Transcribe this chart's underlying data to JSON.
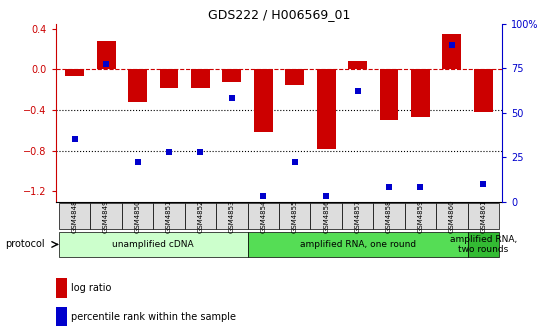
{
  "title": "GDS222 / H006569_01",
  "samples": [
    "GSM4848",
    "GSM4849",
    "GSM4850",
    "GSM4851",
    "GSM4852",
    "GSM4853",
    "GSM4854",
    "GSM4855",
    "GSM4856",
    "GSM4857",
    "GSM4858",
    "GSM4859",
    "GSM4860",
    "GSM4861"
  ],
  "log_ratio": [
    -0.07,
    0.28,
    -0.32,
    -0.18,
    -0.18,
    -0.12,
    -0.62,
    -0.15,
    -0.78,
    0.08,
    -0.5,
    -0.47,
    0.35,
    -0.42
  ],
  "percentile": [
    35,
    77,
    22,
    28,
    28,
    58,
    3,
    22,
    3,
    62,
    8,
    8,
    88,
    10
  ],
  "ylim_left": [
    -1.3,
    0.45
  ],
  "ylim_right": [
    0,
    100
  ],
  "yticks_left": [
    0.4,
    0.0,
    -0.4,
    -0.8,
    -1.2
  ],
  "yticks_right": [
    100,
    75,
    50,
    25,
    0
  ],
  "bar_color": "#cc0000",
  "dot_color": "#0000cc",
  "hline_color": "#cc0000",
  "dotline_color": "#000000",
  "protocol_groups": [
    {
      "label": "unamplified cDNA",
      "start": 0,
      "end": 5,
      "color": "#ccffcc"
    },
    {
      "label": "amplified RNA, one round",
      "start": 6,
      "end": 12,
      "color": "#55dd55"
    },
    {
      "label": "amplified RNA,\ntwo rounds",
      "start": 13,
      "end": 13,
      "color": "#33bb33"
    }
  ],
  "legend_items": [
    {
      "color": "#cc0000",
      "label": "log ratio"
    },
    {
      "color": "#0000cc",
      "label": "percentile rank within the sample"
    }
  ],
  "protocol_label": "protocol"
}
